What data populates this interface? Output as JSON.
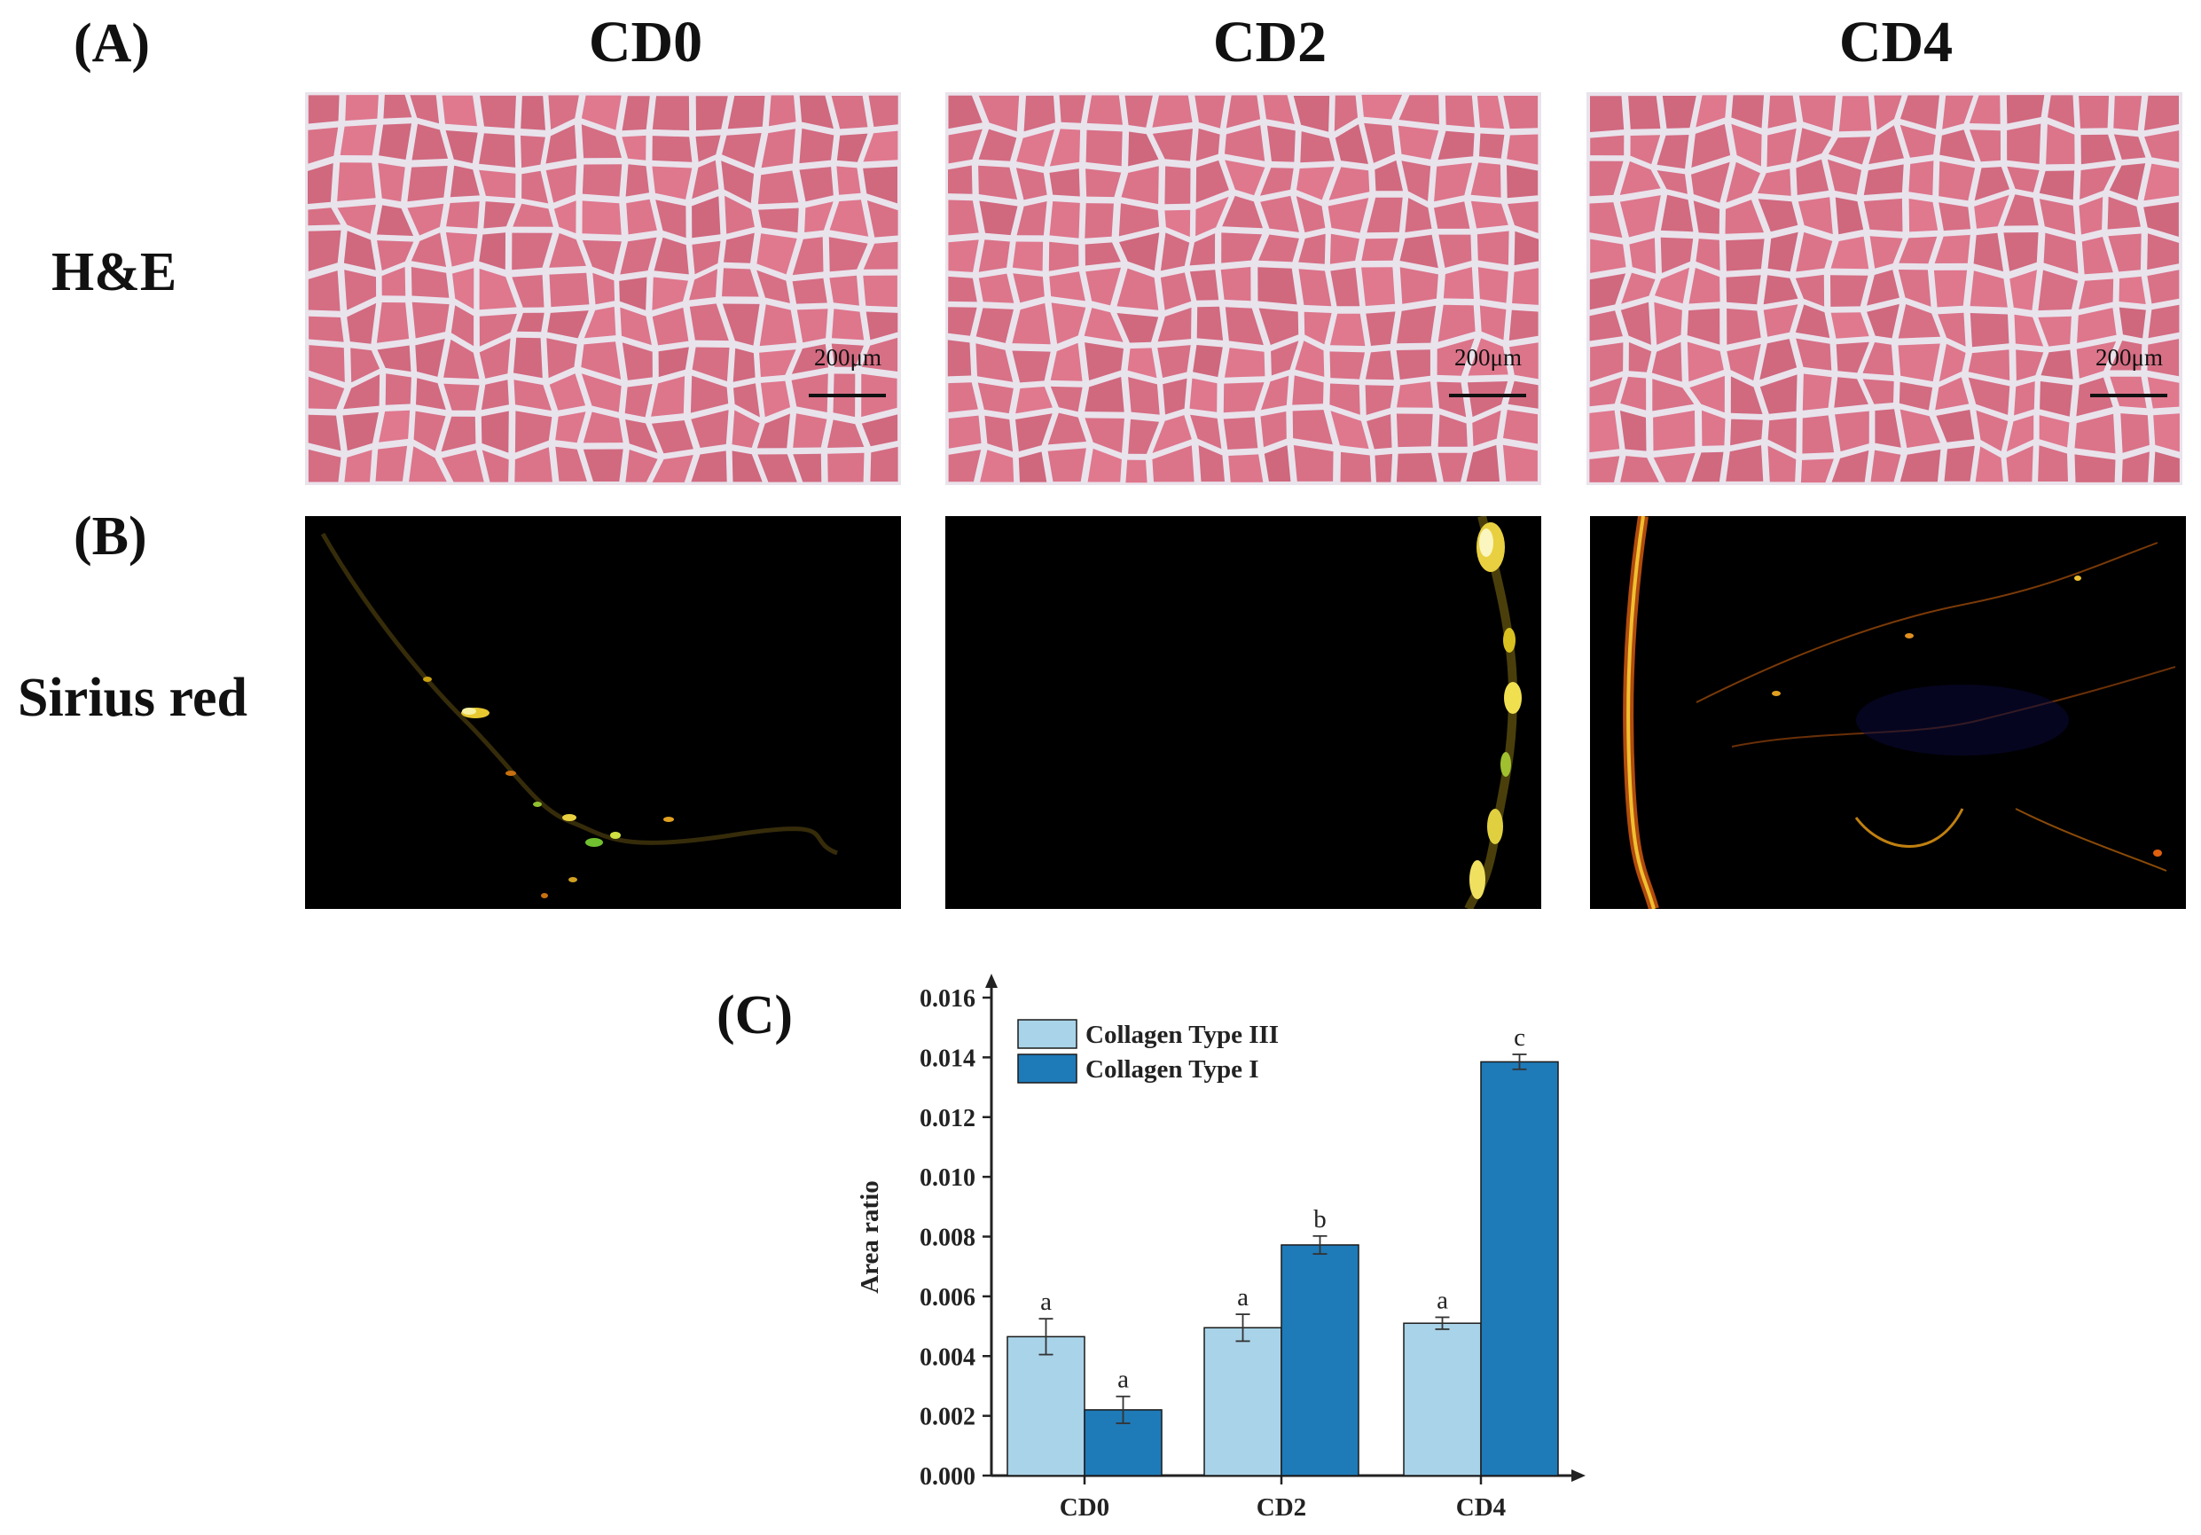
{
  "panels": {
    "a_label": "(A)",
    "b_label": "(B)",
    "c_label": "(C)"
  },
  "columns": [
    "CD0",
    "CD2",
    "CD4"
  ],
  "rows": {
    "he_label": "H&E",
    "sirius_label": "Sirius red"
  },
  "scale_bar_text": "200μm",
  "colors": {
    "he_background": "#e07d95",
    "he_membrane": "#e9e3ec",
    "collagen_type_iii": "#a9d3e8",
    "collagen_type_i": "#1f7ab8"
  },
  "chart_data": {
    "type": "bar",
    "categories": [
      "CD0",
      "CD2",
      "CD4"
    ],
    "series": [
      {
        "name": "Collagen Type III",
        "values": [
          0.00465,
          0.00495,
          0.0051
        ],
        "errors": [
          0.0006,
          0.00045,
          0.0002
        ],
        "letters": [
          "a",
          "a",
          "a"
        ]
      },
      {
        "name": "Collagen Type I",
        "values": [
          0.0022,
          0.00772,
          0.01385
        ],
        "errors": [
          0.00045,
          0.0003,
          0.00025
        ],
        "letters": [
          "a",
          "b",
          "c"
        ]
      }
    ],
    "ylabel": "Area ratio",
    "xlabel": "",
    "ylim": [
      0,
      0.016
    ],
    "yticks": [
      "0.000",
      "0.002",
      "0.004",
      "0.006",
      "0.008",
      "0.010",
      "0.012",
      "0.014",
      "0.016"
    ],
    "legend_position": "top-left",
    "grid": false
  }
}
